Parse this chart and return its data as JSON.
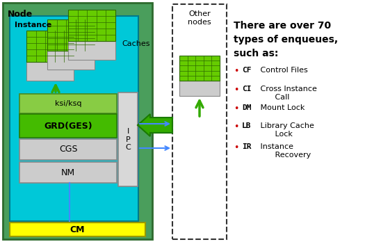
{
  "bg_color": "#ffffff",
  "node_fc": "#4a9e5c",
  "node_ec": "#2d6a2d",
  "instance_fc": "#00c8d8",
  "instance_ec": "#007a8a",
  "cm_fc": "#ffff00",
  "cm_ec": "#999900",
  "ipc_fc": "#d8d8d8",
  "ipc_ec": "#888888",
  "ksi_fc": "#88cc44",
  "ksi_ec": "#4a8a20",
  "grd_fc": "#44bb00",
  "grd_ec": "#2d7a00",
  "cgs_fc": "#cccccc",
  "cgs_ec": "#888888",
  "nm_fc": "#cccccc",
  "nm_ec": "#888888",
  "cache_gray": "#cccccc",
  "cache_green": "#66cc00",
  "cache_grid": "#2d6a00",
  "arrow_green": "#33aa00",
  "arrow_blue": "#4488ff",
  "item_color": "#cc0000",
  "title_text": "There are over 70\ntypes of enqueues,\nsuch as:",
  "items": [
    {
      "code": "CF",
      "desc": " Control Files"
    },
    {
      "code": "CI",
      "desc": " Cross Instance\n       Call"
    },
    {
      "code": "DM",
      "desc": " Mount Lock"
    },
    {
      "code": "LB",
      "desc": " Library Cache\n       Lock"
    },
    {
      "code": "IR",
      "desc": " Instance\n       Recovery"
    }
  ]
}
